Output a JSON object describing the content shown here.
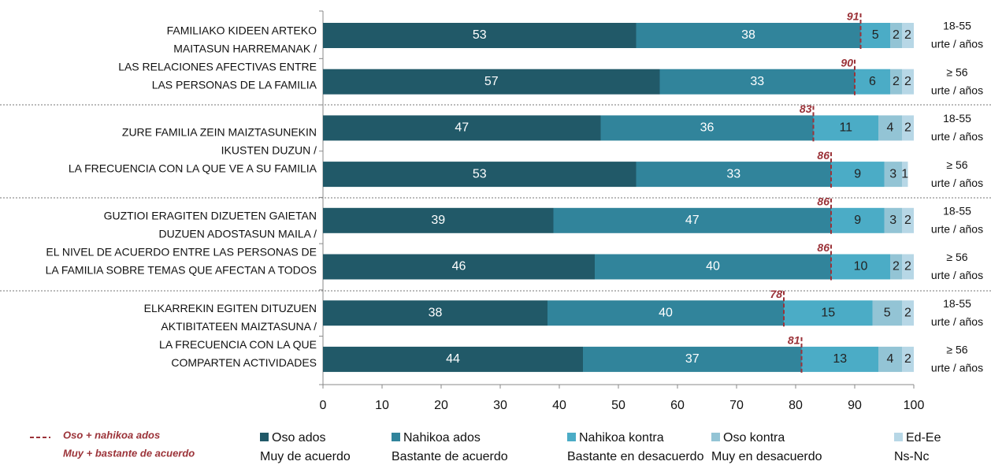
{
  "chart_data": {
    "type": "stacked_barh",
    "groups": [
      [
        "FAMILIAKO KIDEEN ARTEKO",
        "MAITASUN HARREMANAK /",
        "LAS RELACIONES AFECTIVAS ENTRE",
        "LAS PERSONAS DE LA FAMILIA"
      ],
      [
        "ZURE FAMILIA ZEIN MAIZTASUNEKIN",
        "IKUSTEN DUZUN /",
        "LA FRECUENCIA CON LA QUE VE A SU FAMILIA"
      ],
      [
        "GUZTIOI ERAGITEN DIZUETEN GAIETAN",
        "DUZUEN ADOSTASUN MAILA /",
        "EL NIVEL DE ACUERDO ENTRE LAS PERSONAS DE",
        "LA FAMILIA SOBRE TEMAS QUE AFECTAN A TODOS"
      ],
      [
        "ELKARREKIN EGITEN DITUZUEN",
        "AKTIBITATEEN MAIZTASUNA /",
        "LA FRECUENCIA CON LA QUE",
        "COMPARTEN ACTIVIDADES"
      ]
    ],
    "categories": [
      [
        "18-55",
        "urte / años"
      ],
      [
        "≥ 56",
        "urte / años"
      ],
      [
        "18-55",
        "urte / años"
      ],
      [
        "≥ 56",
        "urte / años"
      ],
      [
        "18-55",
        "urte / años"
      ],
      [
        "≥ 56",
        "urte / años"
      ],
      [
        "18-55",
        "urte / años"
      ],
      [
        "≥ 56",
        "urte / años"
      ]
    ],
    "series": [
      {
        "name": "Oso ados",
        "subname": "Muy de acuerdo",
        "color": "#215968",
        "values": [
          53,
          57,
          47,
          53,
          39,
          46,
          38,
          44
        ]
      },
      {
        "name": "Nahikoa ados",
        "subname": "Bastante de acuerdo",
        "color": "#31849b",
        "values": [
          38,
          33,
          36,
          33,
          47,
          40,
          40,
          37
        ]
      },
      {
        "name": "Nahikoa kontra",
        "subname": "Bastante en desacuerdo",
        "color": "#4bacc6",
        "values": [
          5,
          6,
          11,
          9,
          9,
          10,
          15,
          13
        ]
      },
      {
        "name": "Oso kontra",
        "subname": "Muy en desacuerdo",
        "color": "#93c4d5",
        "values": [
          2,
          2,
          4,
          3,
          3,
          2,
          5,
          4
        ]
      },
      {
        "name": "Ed-Ee",
        "subname": "Ns-Nc",
        "color": "#b7d7e6",
        "values": [
          2,
          2,
          2,
          1,
          2,
          2,
          2,
          2
        ]
      }
    ],
    "totals": {
      "name": "Oso + nahikoa ados",
      "subname": "Muy + bastante de acuerdo",
      "color": "#9b3238",
      "values": [
        91,
        90,
        83,
        86,
        86,
        86,
        78,
        81
      ]
    },
    "xlim": [
      0,
      100
    ],
    "xticks": [
      0,
      10,
      20,
      30,
      40,
      50,
      60,
      70,
      80,
      90,
      100
    ]
  }
}
